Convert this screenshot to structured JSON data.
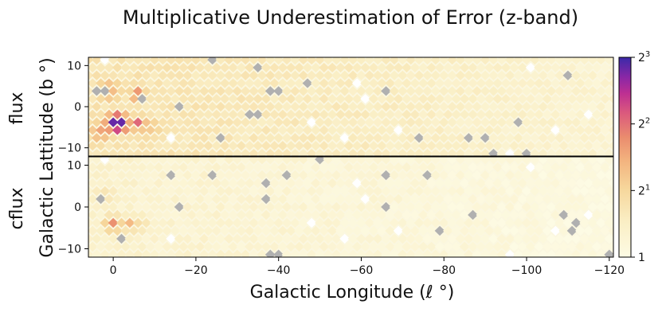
{
  "chart_data": {
    "type": "heatmap",
    "title": "Multiplicative Underestimation of Error (z-band)",
    "xlabel": "Galactic Longitude (ℓ °)",
    "ylabel": "Galactic Lattitude (b °)",
    "xlim": [
      6,
      -121
    ],
    "ylim": [
      -12,
      12
    ],
    "x_ticks": [
      {
        "value": 0,
        "label": "0"
      },
      {
        "value": -20,
        "label": "−20"
      },
      {
        "value": -40,
        "label": "−40"
      },
      {
        "value": -60,
        "label": "−60"
      },
      {
        "value": -80,
        "label": "−80"
      },
      {
        "value": -100,
        "label": "−100"
      },
      {
        "value": -120,
        "label": "−120"
      }
    ],
    "y_ticks": [
      {
        "value": 10,
        "label": "10"
      },
      {
        "value": 0,
        "label": "0"
      },
      {
        "value": -10,
        "label": "−10"
      }
    ],
    "colorbar": {
      "scale": "log2",
      "range": [
        1,
        8
      ],
      "ticks": [
        {
          "value": 1,
          "base": "1",
          "exp": ""
        },
        {
          "value": 2,
          "base": "2",
          "exp": "1"
        },
        {
          "value": 4,
          "base": "2",
          "exp": "2"
        },
        {
          "value": 8,
          "base": "2",
          "exp": "3"
        }
      ],
      "colormap": "magma_r",
      "missing_color": "#b0b0b0"
    },
    "panels": [
      {
        "label": "flux",
        "hotspots": [
          {
            "l": -1,
            "b": -4,
            "value": 8.0,
            "spread_l": 2.6,
            "spread_b": 2.2
          },
          {
            "l": -6,
            "b": -4,
            "value": 4.2,
            "spread_l": 2.2,
            "spread_b": 2.0
          },
          {
            "l": -6,
            "b": 3,
            "value": 3.6,
            "spread_l": 2.2,
            "spread_b": 2.0
          },
          {
            "l": 3,
            "b": -6,
            "value": 3.0,
            "spread_l": 3.0,
            "spread_b": 3.0
          },
          {
            "l": 1,
            "b": 4,
            "value": 2.6,
            "spread_l": 4.0,
            "spread_b": 4.0
          },
          {
            "l": -8,
            "b": -5,
            "value": 2.3,
            "spread_l": 6.0,
            "spread_b": 4.0
          },
          {
            "l": -30,
            "b": 0,
            "value": 1.6,
            "spread_l": 10.0,
            "spread_b": 5.0
          }
        ],
        "background": {
          "near": 1.7,
          "far": 1.25
        }
      },
      {
        "label": "cflux",
        "hotspots": [
          {
            "l": 0,
            "b": -4,
            "value": 3.4,
            "spread_l": 2.2,
            "spread_b": 2.0
          },
          {
            "l": -4,
            "b": -4,
            "value": 2.6,
            "spread_l": 2.5,
            "spread_b": 2.0
          },
          {
            "l": 2,
            "b": 3,
            "value": 1.7,
            "spread_l": 4.0,
            "spread_b": 3.0
          },
          {
            "l": -6,
            "b": -4,
            "value": 1.8,
            "spread_l": 4.0,
            "spread_b": 3.0
          }
        ],
        "background": {
          "near": 1.3,
          "far": 1.05
        }
      }
    ]
  }
}
